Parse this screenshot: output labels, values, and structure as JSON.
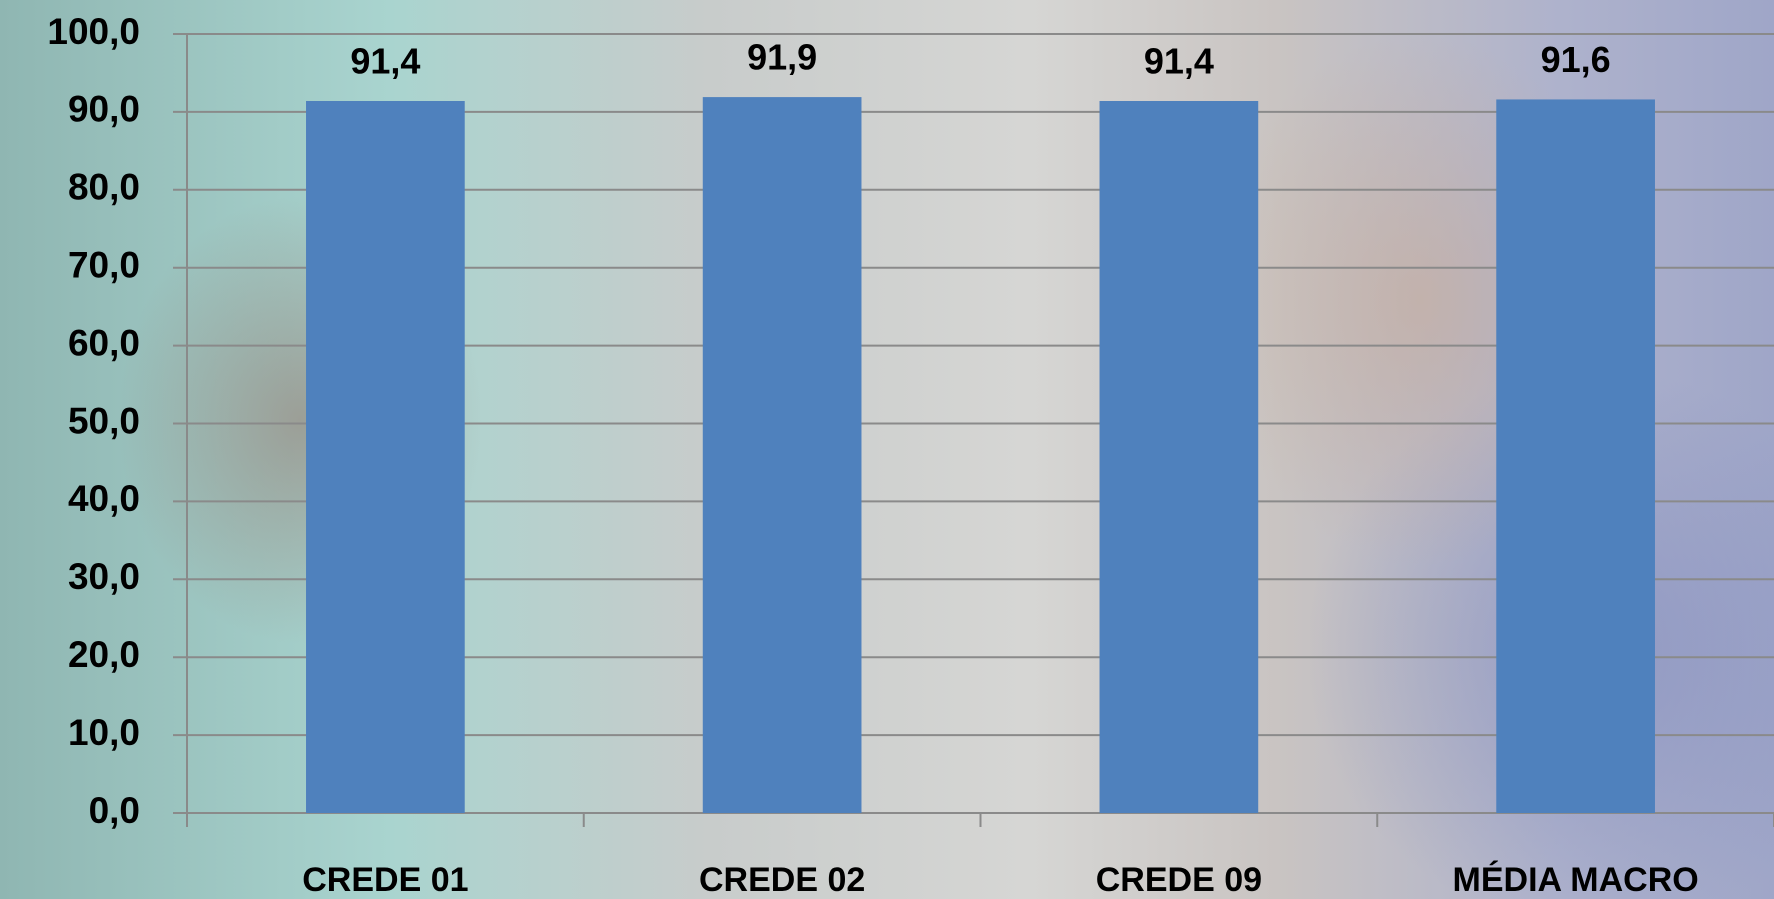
{
  "chart_data": {
    "type": "bar",
    "categories": [
      "CREDE 01",
      "CREDE 02",
      "CREDE 09",
      "MÉDIA MACRO"
    ],
    "values": [
      91.4,
      91.9,
      91.4,
      91.6
    ],
    "value_labels": [
      "91,4",
      "91,9",
      "91,4",
      "91,6"
    ],
    "color": "#4f81bd",
    "ylim": [
      0,
      100
    ],
    "yticks": [
      {
        "value": 0,
        "label": "0,0"
      },
      {
        "value": 10,
        "label": "10,0"
      },
      {
        "value": 20,
        "label": "20,0"
      },
      {
        "value": 30,
        "label": "30,0"
      },
      {
        "value": 40,
        "label": "40,0"
      },
      {
        "value": 50,
        "label": "50,0"
      },
      {
        "value": 60,
        "label": "60,0"
      },
      {
        "value": 70,
        "label": "70,0"
      },
      {
        "value": 80,
        "label": "80,0"
      },
      {
        "value": 90,
        "label": "90,0"
      },
      {
        "value": 100,
        "label": "100,0"
      }
    ],
    "grid": true
  }
}
